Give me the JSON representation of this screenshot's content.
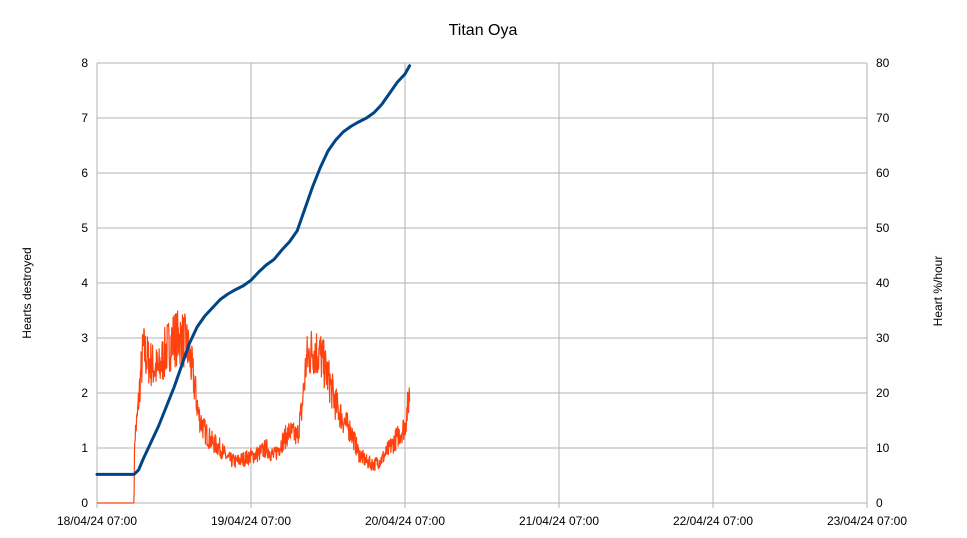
{
  "chart_data": {
    "type": "line",
    "title": "Titan Oya",
    "ylabel": "Hearts destroyed",
    "y2label": "Heart %/hour",
    "x_tick_labels": [
      "18/04/24 07:00",
      "19/04/24 07:00",
      "20/04/24 07:00",
      "21/04/24 07:00",
      "22/04/24 07:00",
      "23/04/24 07:00"
    ],
    "xlim_days": [
      0,
      5
    ],
    "ylim": [
      0,
      8
    ],
    "y_ticks": [
      "0",
      "1",
      "2",
      "3",
      "4",
      "5",
      "6",
      "7",
      "8"
    ],
    "y2lim": [
      0,
      80
    ],
    "y2_ticks": [
      "0",
      "10",
      "20",
      "30",
      "40",
      "50",
      "60",
      "70",
      "80"
    ],
    "grid": true,
    "legend": "none",
    "series": [
      {
        "axis": "left",
        "color": "#004586",
        "points": [
          [
            0,
            0.52
          ],
          [
            0.1,
            0.52
          ],
          [
            0.2,
            0.52
          ],
          [
            0.24,
            0.52
          ],
          [
            0.27,
            0.6
          ],
          [
            0.3,
            0.8
          ],
          [
            0.35,
            1.1
          ],
          [
            0.4,
            1.4
          ],
          [
            0.45,
            1.75
          ],
          [
            0.5,
            2.1
          ],
          [
            0.55,
            2.5
          ],
          [
            0.6,
            2.9
          ],
          [
            0.65,
            3.2
          ],
          [
            0.7,
            3.4
          ],
          [
            0.75,
            3.55
          ],
          [
            0.8,
            3.7
          ],
          [
            0.85,
            3.8
          ],
          [
            0.9,
            3.88
          ],
          [
            0.95,
            3.95
          ],
          [
            1.0,
            4.05
          ],
          [
            1.05,
            4.2
          ],
          [
            1.1,
            4.33
          ],
          [
            1.15,
            4.43
          ],
          [
            1.2,
            4.6
          ],
          [
            1.25,
            4.75
          ],
          [
            1.3,
            4.95
          ],
          [
            1.35,
            5.35
          ],
          [
            1.4,
            5.75
          ],
          [
            1.45,
            6.1
          ],
          [
            1.5,
            6.4
          ],
          [
            1.55,
            6.6
          ],
          [
            1.6,
            6.75
          ],
          [
            1.65,
            6.85
          ],
          [
            1.7,
            6.93
          ],
          [
            1.75,
            7.0
          ],
          [
            1.8,
            7.1
          ],
          [
            1.85,
            7.25
          ],
          [
            1.9,
            7.45
          ],
          [
            1.95,
            7.65
          ],
          [
            2.0,
            7.8
          ],
          [
            2.03,
            7.95
          ]
        ]
      },
      {
        "axis": "right",
        "color": "#ff420e",
        "points": [
          [
            0,
            0
          ],
          [
            0.1,
            0
          ],
          [
            0.2,
            0
          ],
          [
            0.24,
            0
          ],
          [
            0.245,
            12
          ],
          [
            0.26,
            15
          ],
          [
            0.28,
            22
          ],
          [
            0.3,
            28
          ],
          [
            0.33,
            26
          ],
          [
            0.36,
            25
          ],
          [
            0.4,
            24
          ],
          [
            0.45,
            28
          ],
          [
            0.5,
            30
          ],
          [
            0.55,
            30
          ],
          [
            0.58,
            29
          ],
          [
            0.6,
            27
          ],
          [
            0.63,
            22
          ],
          [
            0.66,
            16
          ],
          [
            0.7,
            13
          ],
          [
            0.75,
            11
          ],
          [
            0.8,
            10
          ],
          [
            0.85,
            8
          ],
          [
            0.9,
            7.5
          ],
          [
            0.95,
            8
          ],
          [
            1.0,
            8.5
          ],
          [
            1.05,
            9
          ],
          [
            1.1,
            10
          ],
          [
            1.15,
            8.5
          ],
          [
            1.2,
            11
          ],
          [
            1.25,
            13
          ],
          [
            1.3,
            12
          ],
          [
            1.33,
            17
          ],
          [
            1.36,
            26
          ],
          [
            1.4,
            28
          ],
          [
            1.45,
            27
          ],
          [
            1.5,
            23
          ],
          [
            1.55,
            18
          ],
          [
            1.6,
            15
          ],
          [
            1.65,
            13
          ],
          [
            1.7,
            9
          ],
          [
            1.75,
            7.5
          ],
          [
            1.8,
            7
          ],
          [
            1.85,
            8
          ],
          [
            1.9,
            10
          ],
          [
            1.95,
            12
          ],
          [
            2.0,
            14
          ],
          [
            2.03,
            20
          ]
        ]
      }
    ]
  }
}
